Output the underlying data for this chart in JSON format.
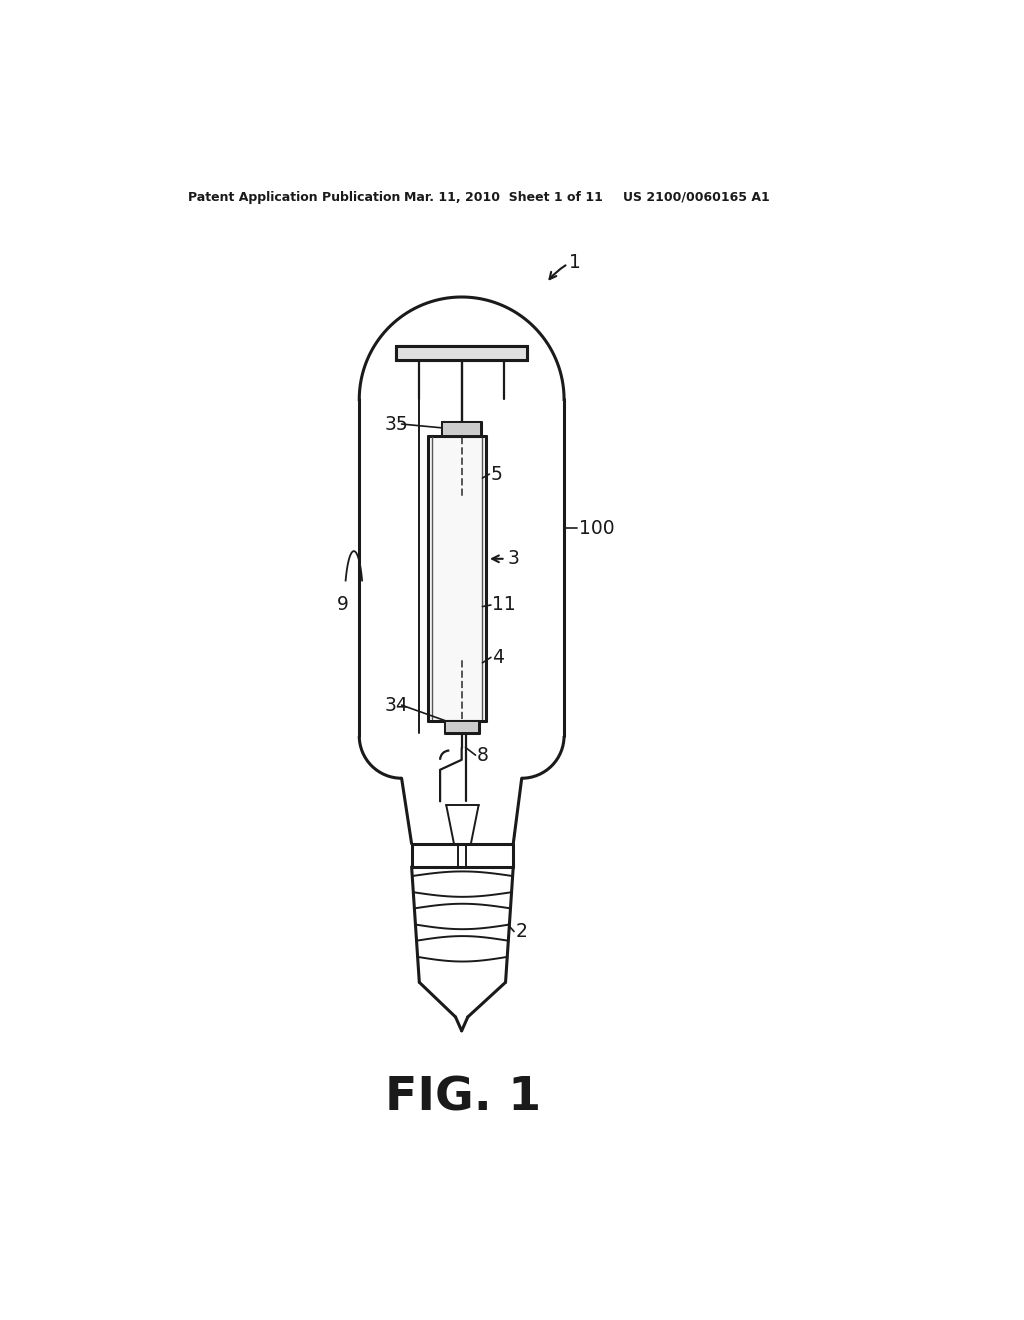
{
  "bg_color": "#ffffff",
  "lc": "#1a1a1a",
  "header_left": "Patent Application Publication",
  "header_mid": "Mar. 11, 2010  Sheet 1 of 11",
  "header_right": "US 2100/0060165 A1",
  "figure_label": "FIG. 1"
}
